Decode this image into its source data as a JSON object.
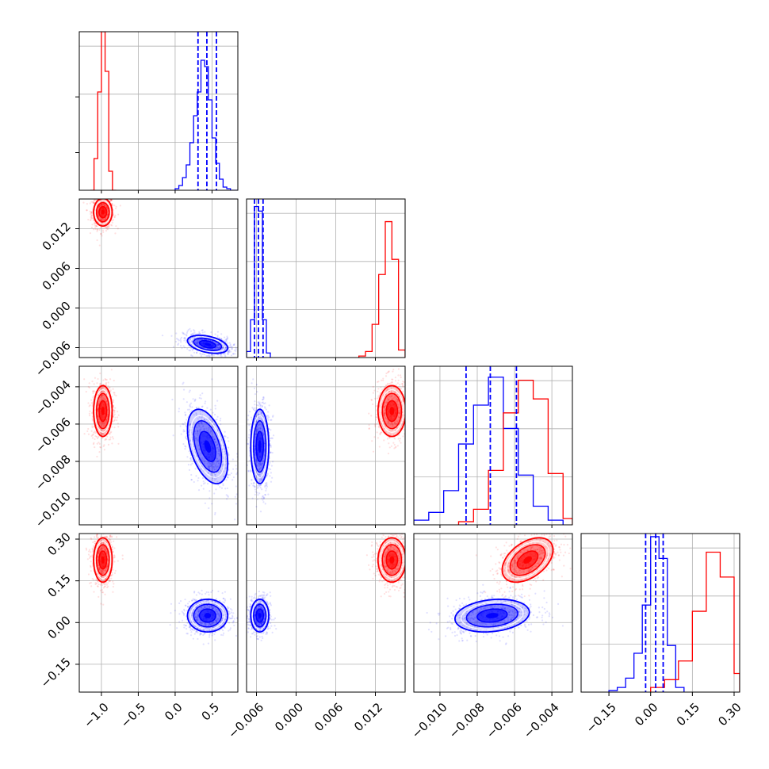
{
  "chart_data": {
    "type": "corner",
    "grid": true,
    "series_colors": {
      "red": "#ff0000",
      "blue": "#0000ff"
    },
    "parameters": [
      {
        "range": [
          -1.3,
          0.85
        ],
        "ticks": [
          -1.0,
          -0.5,
          0.0,
          0.5
        ],
        "tick_labels": [
          "−1.0",
          "−0.5",
          "0.0",
          "0.5"
        ]
      },
      {
        "range": [
          -0.0075,
          0.0165
        ],
        "ticks": [
          -0.006,
          0.0,
          0.006,
          0.012
        ],
        "tick_labels": [
          "−0.006",
          "0.000",
          "0.006",
          "0.012"
        ]
      },
      {
        "range": [
          -0.0114,
          -0.0029
        ],
        "ticks": [
          -0.01,
          -0.008,
          -0.006,
          -0.004
        ],
        "tick_labels": [
          "−0.010",
          "−0.008",
          "−0.006",
          "−0.004"
        ]
      },
      {
        "range": [
          -0.25,
          0.32
        ],
        "ticks": [
          -0.15,
          0.0,
          0.15,
          0.3
        ],
        "tick_labels": [
          "−0.15",
          "0.00",
          "0.15",
          "0.30"
        ]
      }
    ],
    "series": [
      {
        "color": "#ff0000",
        "mean": [
          -0.98,
          0.0145,
          -0.0053,
          0.225
        ],
        "sd": [
          0.06,
          0.001,
          0.00065,
          0.038
        ],
        "correlations": {
          "2-3": 0.45
        },
        "hist_tall_frac": [
          1.0,
          0.65,
          0.45,
          0.62
        ],
        "quantile_lines": []
      },
      {
        "color": "#0000ff",
        "mean": [
          0.44,
          -0.0055,
          -0.0072,
          0.025
        ],
        "sd": [
          0.13,
          0.00065,
          0.00095,
          0.028
        ],
        "correlations": {
          "0-1": -0.4,
          "0-2": -0.45,
          "2-3": 0.2
        },
        "hist_tall_frac": [
          0.62,
          1.0,
          0.66,
          0.98
        ],
        "quantile_lines": [
          [
            0.31,
            0.43,
            0.56
          ],
          [
            -0.0063,
            -0.0057,
            -0.005
          ],
          [
            -0.0086,
            -0.0073,
            -0.0059
          ],
          [
            -0.018,
            0.018,
            0.045
          ]
        ]
      }
    ],
    "histograms": [
      {
        "ylim": [
          0,
          1.0
        ],
        "series": [
          {
            "color": "#ff0000",
            "edges": [
              -1.15,
              -1.1,
              -1.05,
              -1.0,
              -0.95,
              -0.9,
              -0.85,
              -0.8
            ],
            "counts": [
              0.0,
              0.2,
              0.62,
              1.0,
              0.75,
              0.12,
              0.0
            ]
          },
          {
            "color": "#0000ff",
            "edges": [
              0.0,
              0.05,
              0.1,
              0.15,
              0.2,
              0.25,
              0.3,
              0.35,
              0.4,
              0.45,
              0.5,
              0.55,
              0.6,
              0.65,
              0.7,
              0.75,
              0.8,
              0.85
            ],
            "counts": [
              0.01,
              0.03,
              0.08,
              0.16,
              0.3,
              0.47,
              0.62,
              0.82,
              0.78,
              0.57,
              0.33,
              0.17,
              0.07,
              0.02,
              0.01,
              0.0,
              0.0
            ]
          }
        ]
      },
      {
        "ylim": [
          0,
          1.05
        ],
        "series": [
          {
            "color": "#0000ff",
            "edges": [
              -0.0075,
              -0.0069,
              -0.0063,
              -0.0057,
              -0.0051,
              -0.0045,
              -0.0039
            ],
            "counts": [
              0.04,
              0.25,
              1.0,
              0.97,
              0.25,
              0.03
            ]
          },
          {
            "color": "#ff0000",
            "edges": [
              0.0095,
              0.0105,
              0.0115,
              0.0125,
              0.0135,
              0.0145,
              0.0155,
              0.0165
            ],
            "counts": [
              0.01,
              0.04,
              0.22,
              0.55,
              0.9,
              0.65,
              0.05
            ]
          }
        ]
      },
      {
        "ylim": [
          0,
          1.02
        ],
        "series": [
          {
            "color": "#0000ff",
            "edges": [
              -0.0114,
              -0.0106,
              -0.0098,
              -0.009,
              -0.0082,
              -0.0074,
              -0.0066,
              -0.0058,
              -0.005,
              -0.0042,
              -0.0034
            ],
            "counts": [
              0.03,
              0.08,
              0.22,
              0.52,
              0.77,
              0.95,
              0.62,
              0.32,
              0.12,
              0.03
            ]
          },
          {
            "color": "#ff0000",
            "edges": [
              -0.009,
              -0.0082,
              -0.0074,
              -0.0066,
              -0.0058,
              -0.005,
              -0.0042,
              -0.0034,
              -0.0029
            ],
            "counts": [
              0.02,
              0.1,
              0.35,
              0.72,
              0.93,
              0.81,
              0.33,
              0.04
            ]
          }
        ]
      },
      {
        "ylim": [
          0,
          1.02
        ],
        "series": [
          {
            "color": "#0000ff",
            "edges": [
              -0.15,
              -0.12,
              -0.09,
              -0.06,
              -0.03,
              0.0,
              0.03,
              0.06,
              0.09,
              0.12
            ],
            "counts": [
              0.01,
              0.03,
              0.09,
              0.25,
              0.56,
              1.0,
              0.86,
              0.3,
              0.03
            ]
          },
          {
            "color": "#ff0000",
            "edges": [
              0.0,
              0.05,
              0.1,
              0.15,
              0.2,
              0.25,
              0.3,
              0.32
            ],
            "counts": [
              0.03,
              0.08,
              0.2,
              0.52,
              0.9,
              0.74,
              0.12
            ]
          }
        ]
      }
    ]
  }
}
